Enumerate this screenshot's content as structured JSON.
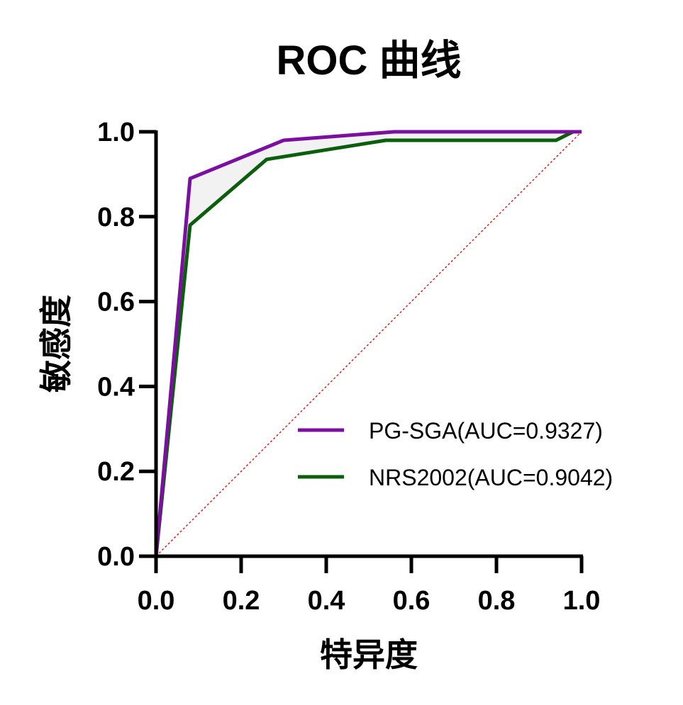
{
  "chart_data": {
    "type": "line",
    "title": "ROC 曲线",
    "xlabel": "特异度",
    "ylabel": "敏感度",
    "xlim": [
      0,
      1
    ],
    "ylim": [
      0,
      1
    ],
    "x_ticks": [
      "0.0",
      "0.2",
      "0.4",
      "0.6",
      "0.8",
      "1.0"
    ],
    "y_ticks": [
      "0.0",
      "0.2",
      "0.4",
      "0.6",
      "0.8",
      "1.0"
    ],
    "grid": false,
    "legend_position": "bottom-right",
    "series": [
      {
        "name": "PG-SGA(AUC=0.9327)",
        "color": "#7a0fa0",
        "points": [
          [
            0,
            0
          ],
          [
            0.08,
            0.89
          ],
          [
            0.3,
            0.98
          ],
          [
            0.56,
            1.0
          ],
          [
            1.0,
            1.0
          ]
        ]
      },
      {
        "name": "NRS2002(AUC=0.9042)",
        "color": "#0b5e0b",
        "points": [
          [
            0,
            0
          ],
          [
            0.08,
            0.78
          ],
          [
            0.26,
            0.935
          ],
          [
            0.54,
            0.98
          ],
          [
            0.94,
            0.98
          ],
          [
            0.98,
            1.0
          ],
          [
            1.0,
            1.0
          ]
        ]
      }
    ],
    "reference_line": {
      "color": "#e02020",
      "style": "dotted",
      "points": [
        [
          0,
          0
        ],
        [
          1,
          1
        ]
      ]
    },
    "fill_between": {
      "color": "#f2f2f2"
    }
  }
}
